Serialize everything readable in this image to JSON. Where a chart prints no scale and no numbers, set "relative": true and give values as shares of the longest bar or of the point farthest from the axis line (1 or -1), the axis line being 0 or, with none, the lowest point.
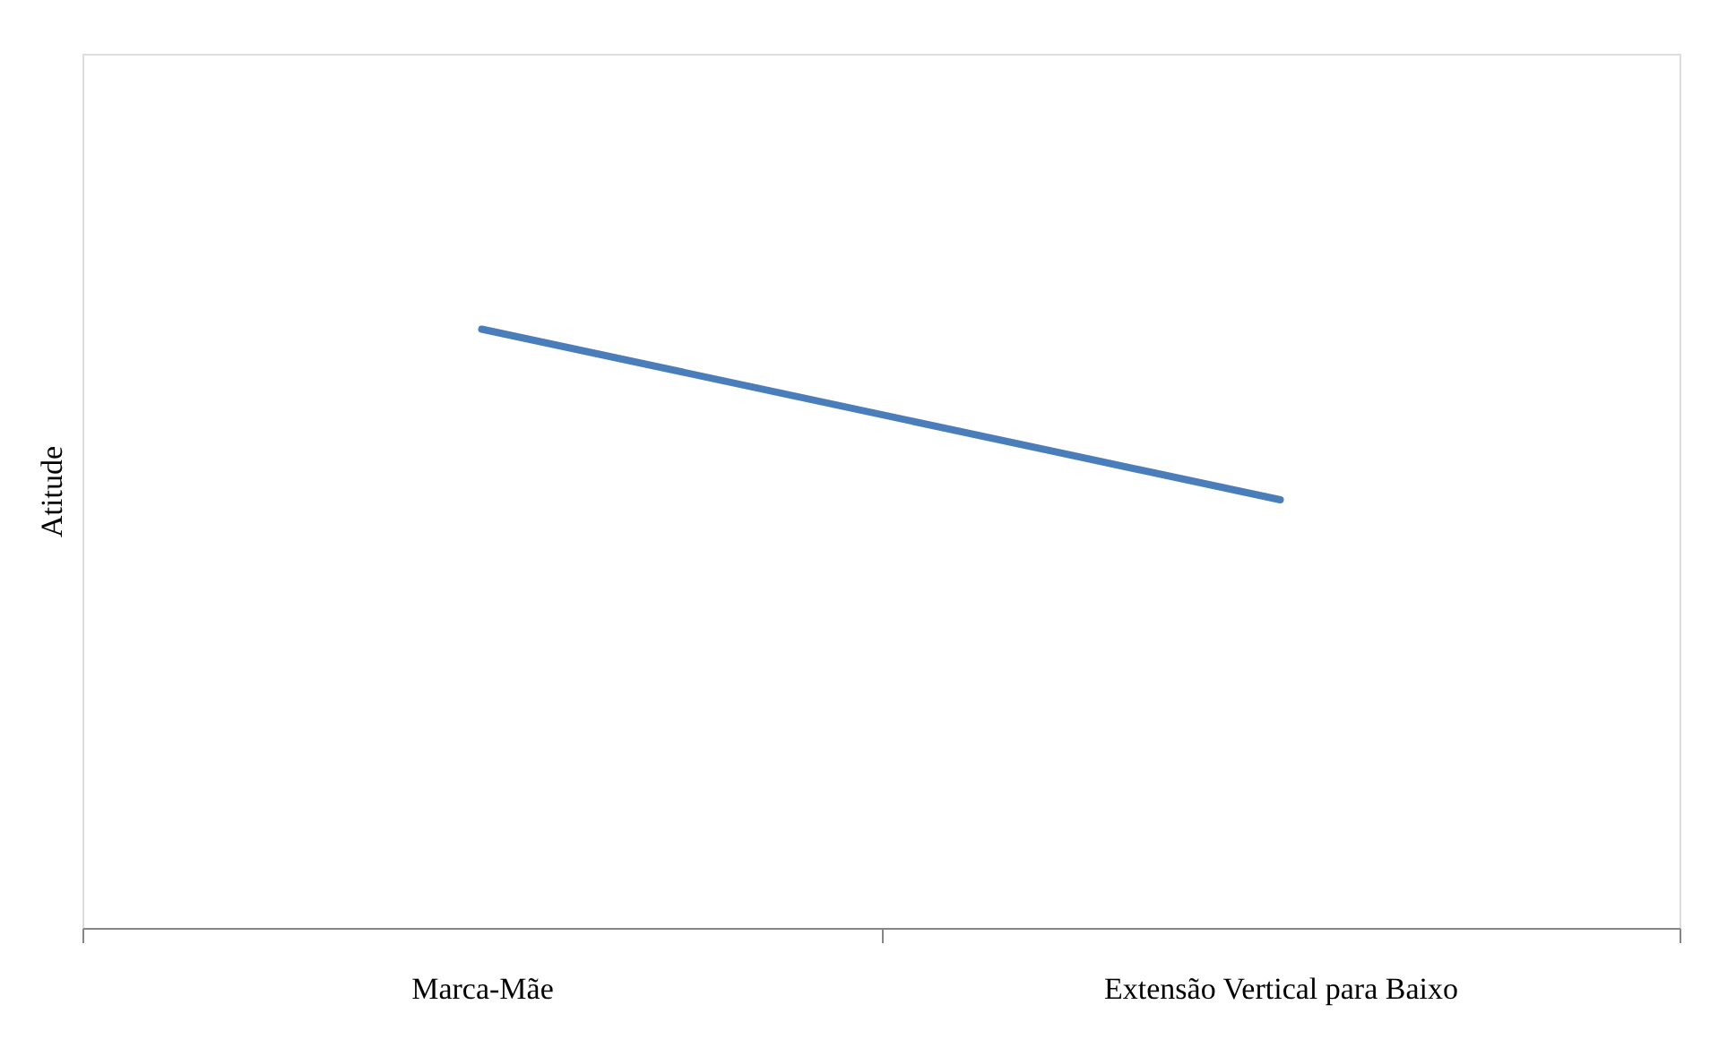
{
  "chart_data": {
    "type": "line",
    "relative": true,
    "ylabel": "Atitude",
    "categories": [
      "Marca-Mãe",
      "Extensão Vertical para Baixo"
    ],
    "series": [
      {
        "color": "#4a7ebb",
        "values": [
          1,
          0.715
        ]
      }
    ],
    "grid": false,
    "marker": "none",
    "line_style": "solid",
    "tick_labels": "x"
  }
}
